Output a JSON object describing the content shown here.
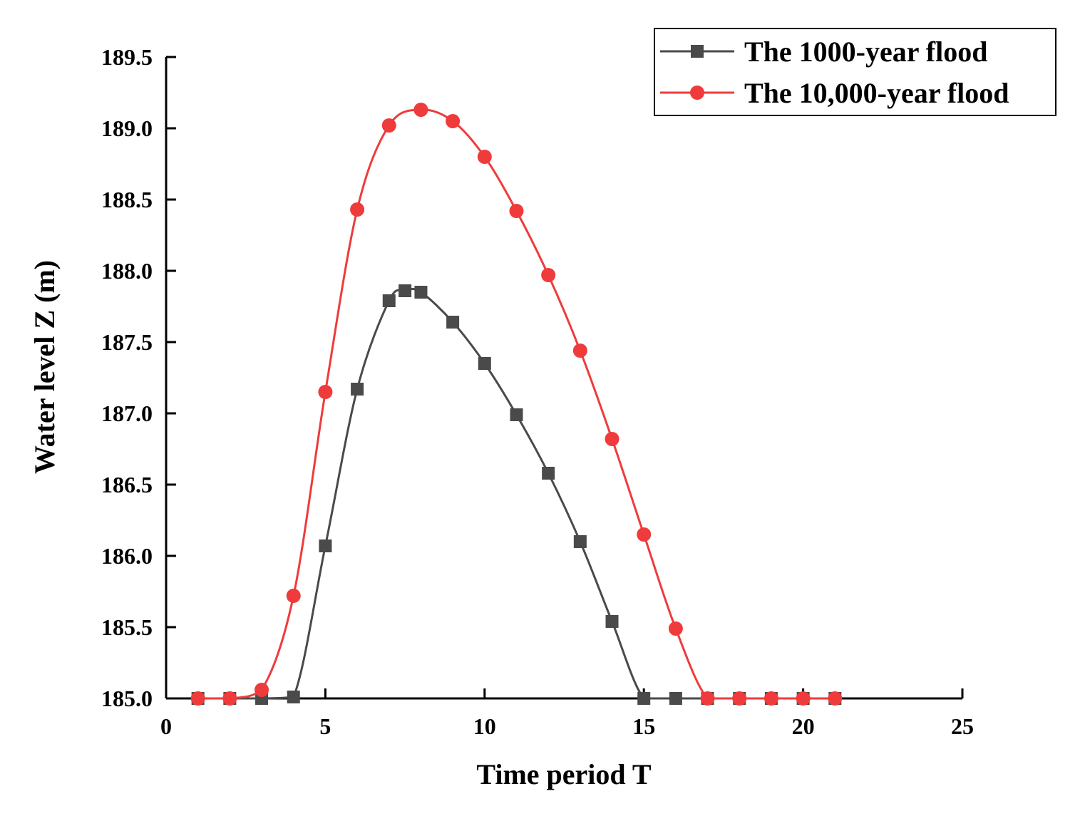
{
  "chart_data": {
    "type": "line",
    "title": "",
    "xlabel": "Time period T",
    "ylabel": "Water level Z (m)",
    "xlim": [
      0,
      25
    ],
    "ylim": [
      185.0,
      189.5
    ],
    "x_ticks": [
      0,
      5,
      10,
      15,
      20,
      25
    ],
    "x_tick_labels": [
      "0",
      "5",
      "10",
      "15",
      "20",
      "25"
    ],
    "y_ticks": [
      185.0,
      185.5,
      186.0,
      186.5,
      187.0,
      187.5,
      188.0,
      188.5,
      189.0,
      189.5
    ],
    "y_tick_labels": [
      "185.0",
      "185.5",
      "186.0",
      "186.5",
      "187.0",
      "187.5",
      "188.0",
      "188.5",
      "189.0",
      "189.5"
    ],
    "grid": false,
    "legend_position": "top-right",
    "series": [
      {
        "name": "The 1000-year flood",
        "color": "#4a4a4a",
        "marker": "square",
        "x": [
          1,
          2,
          3,
          4,
          5,
          6,
          7,
          7.5,
          8,
          9,
          10,
          11,
          12,
          13,
          14,
          15,
          16,
          17,
          18,
          19,
          20,
          21
        ],
        "y": [
          185.0,
          185.0,
          185.0,
          185.01,
          186.07,
          187.17,
          187.79,
          187.86,
          187.85,
          187.64,
          187.35,
          186.99,
          186.58,
          186.1,
          185.54,
          185.0,
          185.0,
          185.0,
          185.0,
          185.0,
          185.0,
          185.0
        ]
      },
      {
        "name": "The 10,000-year flood",
        "color": "#ef3b3b",
        "marker": "circle",
        "x": [
          1,
          2,
          3,
          4,
          5,
          6,
          7,
          8,
          9,
          10,
          11,
          12,
          13,
          14,
          15,
          16,
          17,
          18,
          19,
          20,
          21
        ],
        "y": [
          185.0,
          185.0,
          185.06,
          185.72,
          187.15,
          188.43,
          189.02,
          189.13,
          189.05,
          188.8,
          188.42,
          187.97,
          187.44,
          186.82,
          186.15,
          185.49,
          185.0,
          185.0,
          185.0,
          185.0,
          185.0
        ]
      }
    ]
  }
}
